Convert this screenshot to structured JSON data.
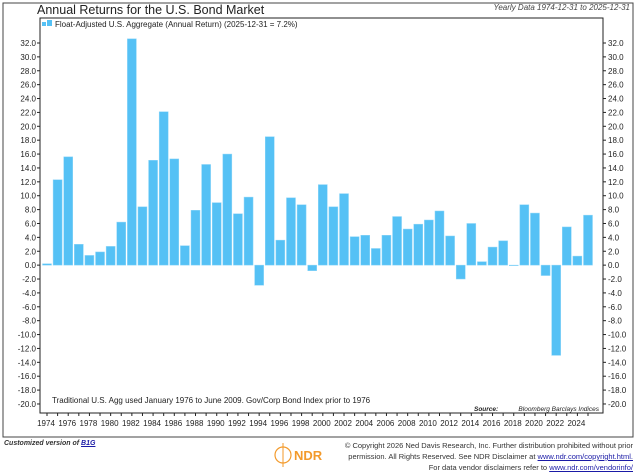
{
  "chart_data": {
    "type": "bar",
    "title": "Annual Returns for the U.S. Bond Market",
    "subtitle": "Yearly Data 1974-12-31 to 2025-12-31",
    "legend": "Float-Adjusted U.S. Aggregate (Annual Return) (2025-12-31 = 7.2%)",
    "legend_placement": "top-left",
    "note": "Traditional U.S. Agg used January 1976 to June 2009. Gov/Corp Bond Index prior to 1976",
    "source_label": "Source:",
    "source": "Bloomberg Barclays Indices",
    "bar_color": "#55c1f5",
    "categories": [
      1974,
      1975,
      1976,
      1977,
      1978,
      1979,
      1980,
      1981,
      1982,
      1983,
      1984,
      1985,
      1986,
      1987,
      1988,
      1989,
      1990,
      1991,
      1992,
      1993,
      1994,
      1995,
      1996,
      1997,
      1998,
      1999,
      2000,
      2001,
      2002,
      2003,
      2004,
      2005,
      2006,
      2007,
      2008,
      2009,
      2010,
      2011,
      2012,
      2013,
      2014,
      2015,
      2016,
      2017,
      2018,
      2019,
      2020,
      2021,
      2022,
      2023,
      2024,
      2025
    ],
    "values": [
      0.2,
      12.3,
      15.6,
      3.0,
      1.4,
      1.9,
      2.7,
      6.2,
      32.6,
      8.4,
      15.1,
      22.1,
      15.3,
      2.8,
      7.9,
      14.5,
      9.0,
      16.0,
      7.4,
      9.8,
      -2.9,
      18.5,
      3.6,
      9.7,
      8.7,
      -0.8,
      11.6,
      8.4,
      10.3,
      4.1,
      4.3,
      2.4,
      4.3,
      7.0,
      5.2,
      5.9,
      6.5,
      7.8,
      4.2,
      -2.0,
      6.0,
      0.5,
      2.6,
      3.5,
      0.0,
      8.7,
      7.5,
      -1.5,
      -13.0,
      5.5,
      1.3,
      7.2
    ],
    "x_tick_labels": [
      "1974",
      "1976",
      "1978",
      "1980",
      "1982",
      "1984",
      "1986",
      "1988",
      "1990",
      "1992",
      "1994",
      "1996",
      "1998",
      "2000",
      "2002",
      "2004",
      "2006",
      "2008",
      "2010",
      "2012",
      "2014",
      "2016",
      "2018",
      "2020",
      "2022",
      "2024"
    ],
    "y_ticks": [
      32,
      30,
      28,
      26,
      24,
      22,
      20,
      18,
      16,
      14,
      12,
      10,
      8,
      6,
      4,
      2,
      0,
      -2,
      -4,
      -6,
      -8,
      -10,
      -12,
      -14,
      -16,
      -18,
      -20
    ],
    "ylim": [
      -21.3,
      35.6
    ],
    "grid": false
  },
  "footer": {
    "customized": "Customized version of",
    "customized_link": "B1G",
    "logo": "NDR",
    "copyright_1": "© Copyright 2026 Ned Davis Research, Inc. Further distribution prohibited without prior",
    "copyright_2": "permission. All Rights Reserved. See NDR Disclaimer at",
    "copyright_link": "www.ndr.com/copyright.html.",
    "vendor": "For data vendor disclaimers refer to",
    "vendor_link": "www.ndr.com/vendorinfo/"
  }
}
